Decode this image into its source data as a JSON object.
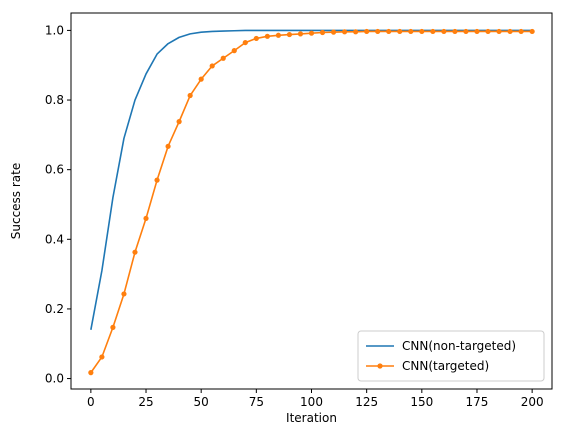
{
  "chart_data": {
    "type": "line",
    "xlabel": "Iteration",
    "ylabel": "Success rate",
    "xlim": [
      -9,
      209
    ],
    "ylim": [
      -0.03,
      1.05
    ],
    "xticks": [
      0,
      25,
      50,
      75,
      100,
      125,
      150,
      175,
      200
    ],
    "yticks": [
      0.0,
      0.2,
      0.4,
      0.6,
      0.8,
      1.0
    ],
    "ytick_labels": [
      "0.0",
      "0.2",
      "0.4",
      "0.6",
      "0.8",
      "1.0"
    ],
    "legend": "lower-right",
    "grid": false,
    "series": [
      {
        "name": "CNN(non-targeted)",
        "color": "#1f77b4",
        "marker": "none",
        "x": [
          0,
          5,
          10,
          15,
          20,
          25,
          30,
          35,
          40,
          45,
          50,
          55,
          60,
          65,
          70,
          75,
          80,
          85,
          90,
          95,
          100,
          110,
          120,
          130,
          140,
          150,
          160,
          170,
          180,
          190,
          200
        ],
        "y": [
          0.14,
          0.31,
          0.52,
          0.69,
          0.8,
          0.875,
          0.932,
          0.962,
          0.98,
          0.99,
          0.995,
          0.997,
          0.998,
          0.999,
          1.0,
          1.0,
          1.0,
          1.0,
          1.0,
          1.0,
          1.0,
          1.0,
          1.0,
          1.0,
          1.0,
          1.0,
          1.0,
          1.0,
          1.0,
          1.0,
          1.0
        ]
      },
      {
        "name": "CNN(targeted)",
        "color": "#ff7f0e",
        "marker": "circle",
        "x": [
          0,
          5,
          10,
          15,
          20,
          25,
          30,
          35,
          40,
          45,
          50,
          55,
          60,
          65,
          70,
          75,
          80,
          85,
          90,
          95,
          100,
          105,
          110,
          115,
          120,
          125,
          130,
          135,
          140,
          145,
          150,
          155,
          160,
          165,
          170,
          175,
          180,
          185,
          190,
          195,
          200
        ],
        "y": [
          0.017,
          0.062,
          0.147,
          0.243,
          0.363,
          0.46,
          0.57,
          0.667,
          0.738,
          0.813,
          0.86,
          0.898,
          0.92,
          0.942,
          0.965,
          0.977,
          0.983,
          0.986,
          0.988,
          0.99,
          0.992,
          0.994,
          0.995,
          0.996,
          0.996,
          0.997,
          0.997,
          0.997,
          0.997,
          0.997,
          0.997,
          0.997,
          0.997,
          0.997,
          0.997,
          0.997,
          0.997,
          0.997,
          0.997,
          0.997,
          0.997
        ]
      }
    ]
  }
}
